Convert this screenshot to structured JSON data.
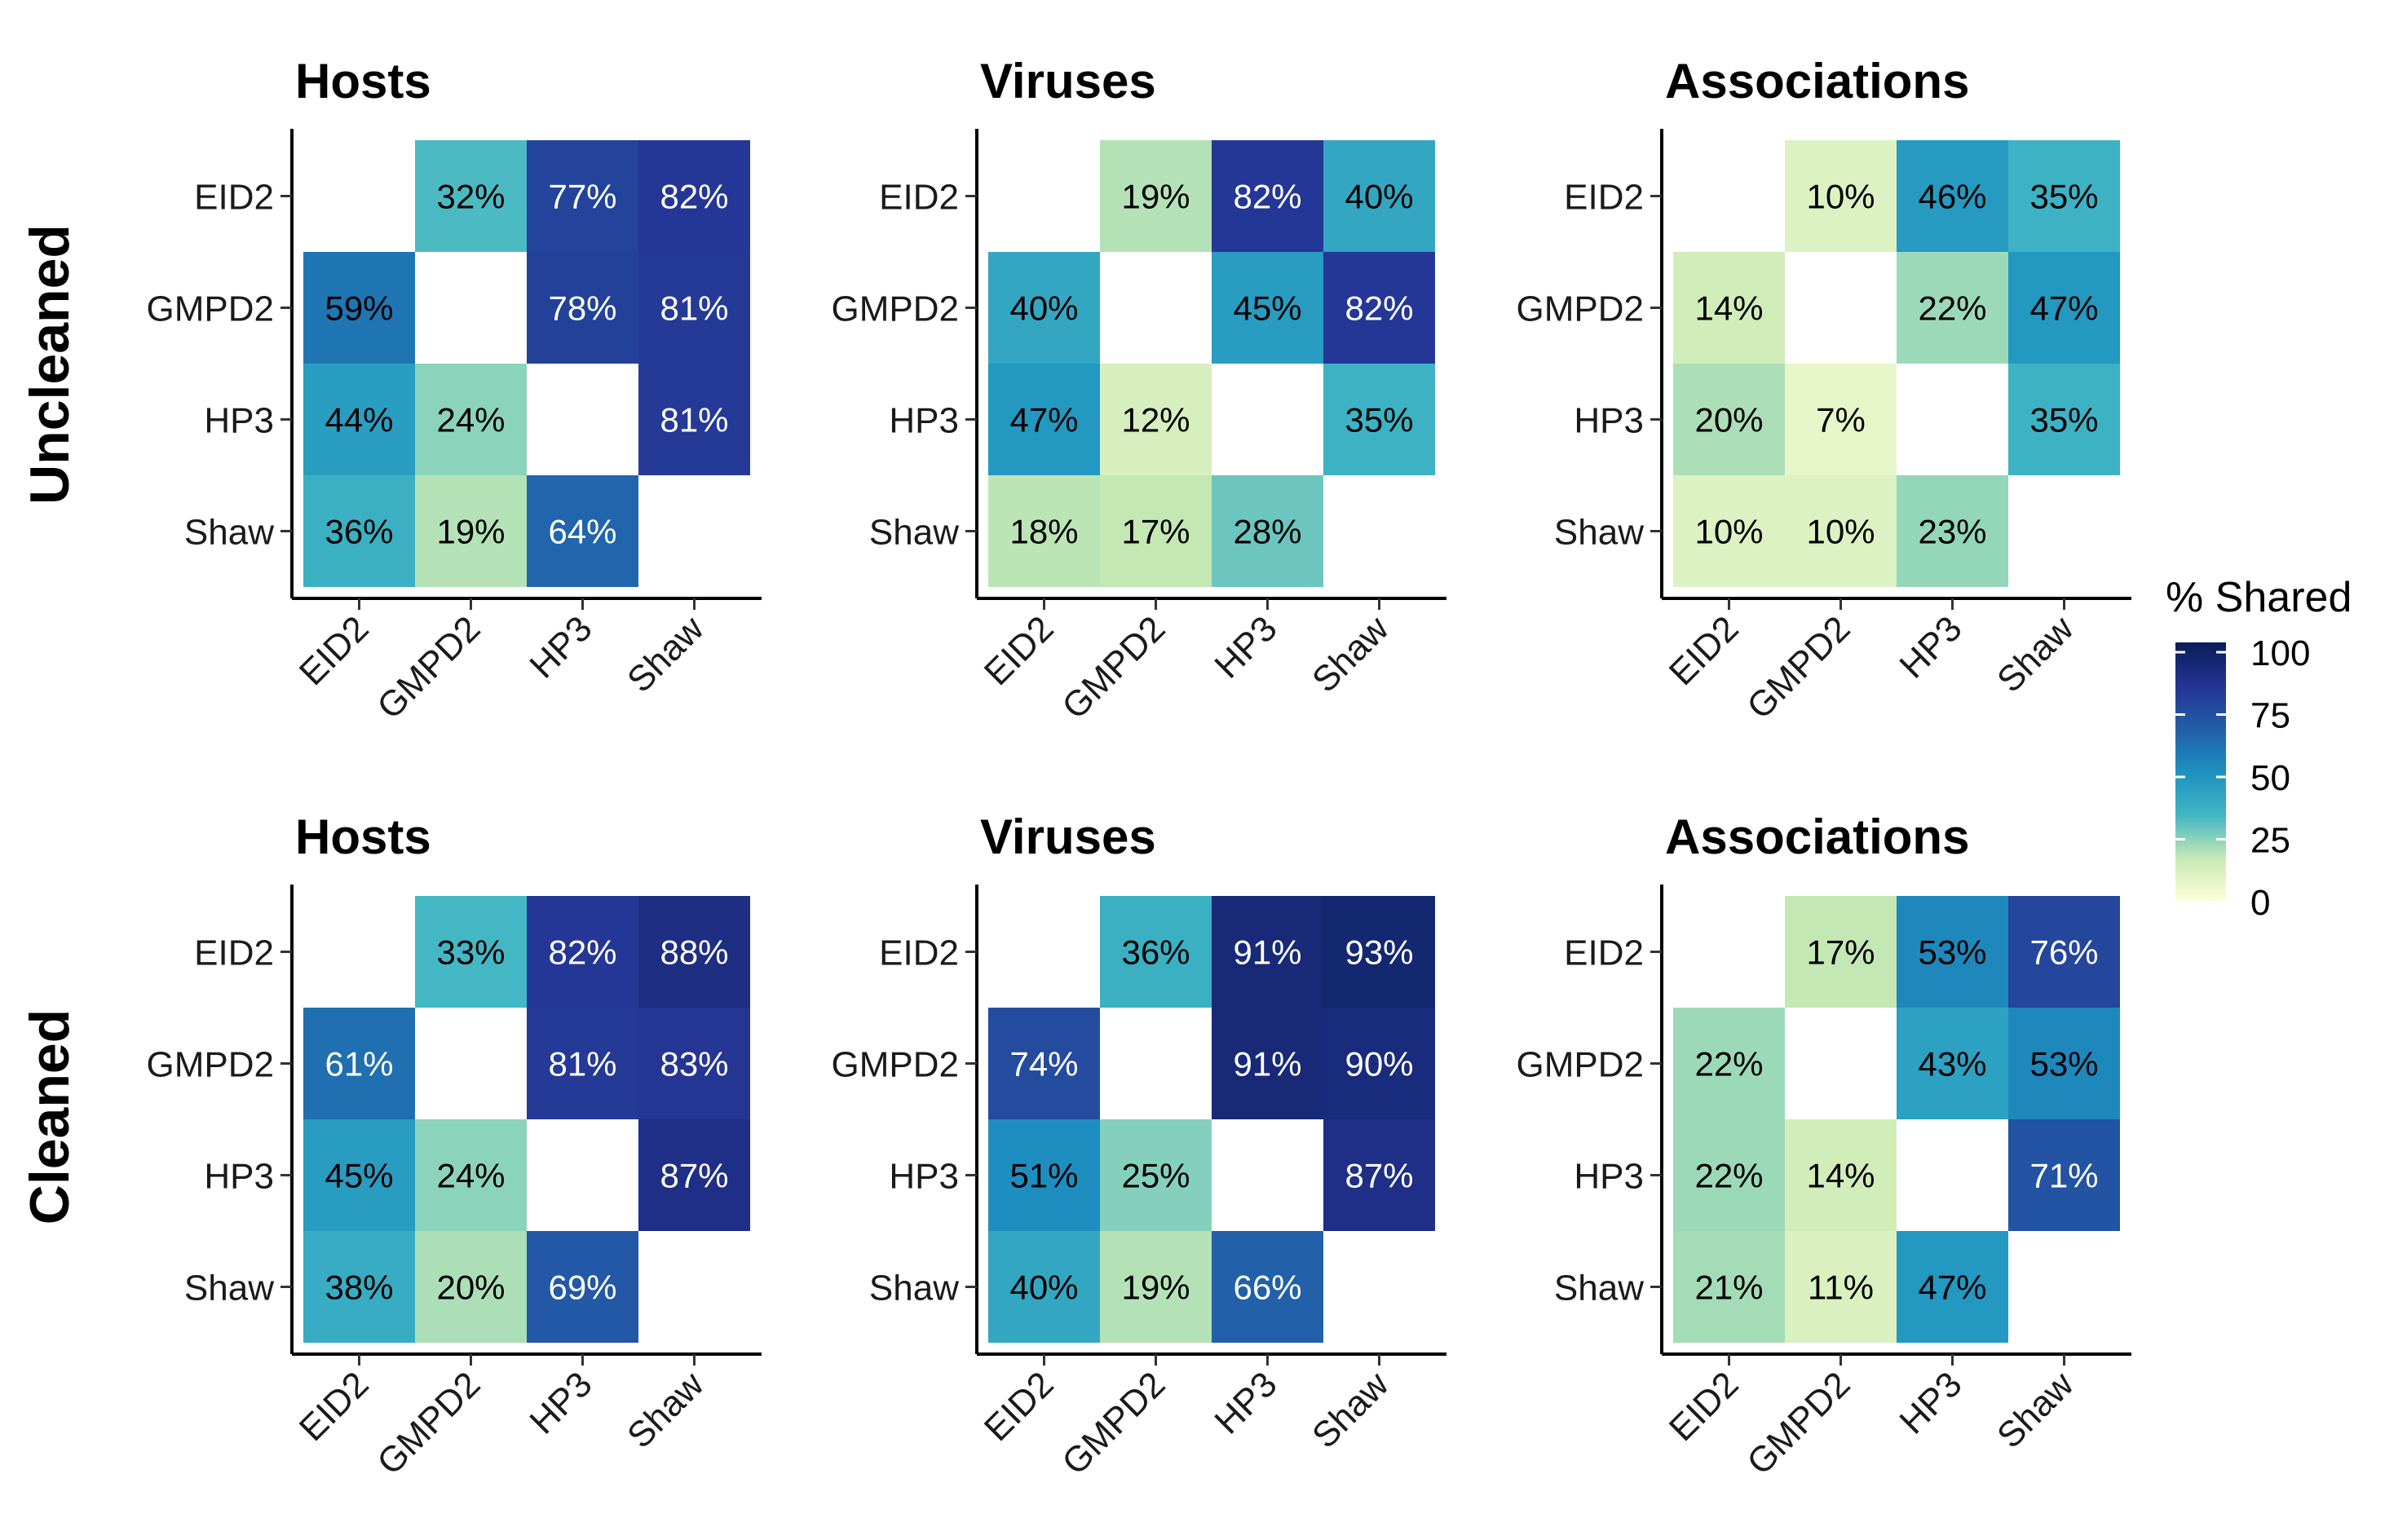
{
  "chart_data": {
    "type": "heatmap",
    "categories": [
      "EID2",
      "GMPD2",
      "HP3",
      "Shaw"
    ],
    "row_labels": [
      "Uncleaned",
      "Cleaned"
    ],
    "legend": {
      "title": "% Shared",
      "min": 0,
      "max": 100,
      "ticks": [
        "100",
        "75",
        "50",
        "25",
        "0"
      ],
      "tick_values": [
        100,
        75,
        50,
        25,
        0
      ],
      "placement": "right",
      "colors": [
        "#ffffd9",
        "#c7e9b4",
        "#41b6c4",
        "#1d91c0",
        "#225ea8",
        "#253494",
        "#081d58"
      ]
    },
    "panels": [
      {
        "row": "Uncleaned",
        "title": "Hosts",
        "matrix": [
          [
            null,
            32,
            77,
            82
          ],
          [
            59,
            null,
            78,
            81
          ],
          [
            44,
            24,
            null,
            81
          ],
          [
            36,
            19,
            64,
            null
          ]
        ],
        "labels": [
          [
            "",
            "32%",
            "77%",
            "82%"
          ],
          [
            "59%",
            "",
            "78%",
            "81%"
          ],
          [
            "44%",
            "24%",
            "",
            "81%"
          ],
          [
            "36%",
            "19%",
            "64%",
            ""
          ]
        ]
      },
      {
        "row": "Uncleaned",
        "title": "Viruses",
        "matrix": [
          [
            null,
            19,
            82,
            40
          ],
          [
            40,
            null,
            45,
            82
          ],
          [
            47,
            12,
            null,
            35
          ],
          [
            18,
            17,
            28,
            null
          ]
        ],
        "labels": [
          [
            "",
            "19%",
            "82%",
            "40%"
          ],
          [
            "40%",
            "",
            "45%",
            "82%"
          ],
          [
            "47%",
            "12%",
            "",
            "35%"
          ],
          [
            "18%",
            "17%",
            "28%",
            ""
          ]
        ]
      },
      {
        "row": "Uncleaned",
        "title": "Associations",
        "matrix": [
          [
            null,
            10,
            46,
            35
          ],
          [
            14,
            null,
            22,
            47
          ],
          [
            20,
            7,
            null,
            35
          ],
          [
            10,
            10,
            23,
            null
          ]
        ],
        "labels": [
          [
            "",
            "10%",
            "46%",
            "35%"
          ],
          [
            "14%",
            "",
            "22%",
            "47%"
          ],
          [
            "20%",
            "7%",
            "",
            "35%"
          ],
          [
            "10%",
            "10%",
            "23%",
            ""
          ]
        ]
      },
      {
        "row": "Cleaned",
        "title": "Hosts",
        "matrix": [
          [
            null,
            33,
            82,
            88
          ],
          [
            61,
            null,
            81,
            83
          ],
          [
            45,
            24,
            null,
            87
          ],
          [
            38,
            20,
            69,
            null
          ]
        ],
        "labels": [
          [
            "",
            "33%",
            "82%",
            "88%"
          ],
          [
            "61%",
            "",
            "81%",
            "83%"
          ],
          [
            "45%",
            "24%",
            "",
            "87%"
          ],
          [
            "38%",
            "20%",
            "69%",
            ""
          ]
        ]
      },
      {
        "row": "Cleaned",
        "title": "Viruses",
        "matrix": [
          [
            null,
            36,
            91,
            93
          ],
          [
            74,
            null,
            91,
            90
          ],
          [
            51,
            25,
            null,
            87
          ],
          [
            40,
            19,
            66,
            null
          ]
        ],
        "labels": [
          [
            "",
            "36%",
            "91%",
            "93%"
          ],
          [
            "74%",
            "",
            "91%",
            "90%"
          ],
          [
            "51%",
            "25%",
            "",
            "87%"
          ],
          [
            "40%",
            "19%",
            "66%",
            ""
          ]
        ]
      },
      {
        "row": "Cleaned",
        "title": "Associations",
        "matrix": [
          [
            null,
            17,
            53,
            76
          ],
          [
            22,
            null,
            43,
            53
          ],
          [
            22,
            14,
            null,
            71
          ],
          [
            21,
            11,
            47,
            null
          ]
        ],
        "labels": [
          [
            "",
            "17%",
            "53%",
            "76%"
          ],
          [
            "22%",
            "",
            "43%",
            "53%"
          ],
          [
            "22%",
            "14%",
            "",
            "71%"
          ],
          [
            "21%",
            "11%",
            "47%",
            ""
          ]
        ]
      }
    ]
  }
}
